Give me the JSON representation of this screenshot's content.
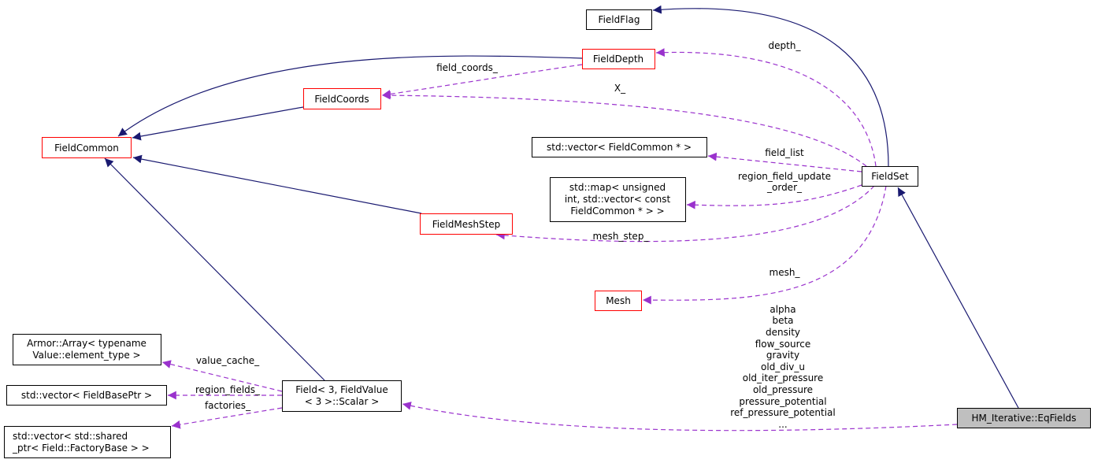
{
  "nodes": {
    "field_flag": "FieldFlag",
    "field_depth": "FieldDepth",
    "field_coords": "FieldCoords",
    "field_common": "FieldCommon",
    "vector_field_common": "std::vector< FieldCommon * >",
    "field_set": "FieldSet",
    "map_lines": [
      "std::map< unsigned",
      "int, std::vector< const",
      "FieldCommon * > >"
    ],
    "field_mesh_step": "FieldMeshStep",
    "mesh": "Mesh",
    "armor_lines": [
      "Armor::Array< typename",
      "Value::element_type >"
    ],
    "vector_field_base_ptr": "std::vector< FieldBasePtr >",
    "field_scalar_lines": [
      "Field< 3, FieldValue",
      "< 3 >::Scalar >"
    ],
    "vector_shared_lines": [
      "std::vector< std::shared",
      "_ptr< Field::FactoryBase > >"
    ],
    "eq_fields": "HM_Iterative::EqFields"
  },
  "edge_labels": {
    "field_coords_": "field_coords_",
    "depth_": "depth_",
    "x_": "X_",
    "field_list": "field_list",
    "region_field_update_order": [
      "region_field_update",
      "_order_"
    ],
    "mesh_step_": "mesh_step_",
    "mesh_": "mesh_",
    "value_cache_": "value_cache_",
    "region_fields_": "region_fields_",
    "factories_": "factories_",
    "eq_fields_members": [
      "alpha",
      "beta",
      "density",
      "flow_source",
      "gravity",
      "old_div_u",
      "old_iter_pressure",
      "old_pressure",
      "pressure_potential",
      "ref_pressure_potential",
      "..."
    ]
  },
  "colors": {
    "inheritance_edge": "#191970",
    "usage_edge": "#9a32cd",
    "incomplete_node_border": "#ff0000",
    "current_node_fill": "#bfbfbf"
  }
}
